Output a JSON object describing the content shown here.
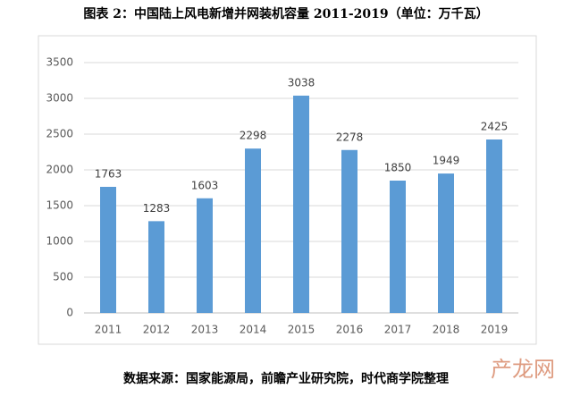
{
  "chart_data": {
    "type": "bar",
    "title": "图表 2：中国陆上风电新增并网装机容量 2011-2019（单位：万千瓦）",
    "categories": [
      "2011",
      "2012",
      "2013",
      "2014",
      "2015",
      "2016",
      "2017",
      "2018",
      "2019"
    ],
    "values": [
      1763,
      1283,
      1603,
      2298,
      3038,
      2278,
      1850,
      1949,
      2425
    ],
    "color": "#5b9bd5",
    "ylim": [
      0,
      3500
    ],
    "yticks": [
      0,
      500,
      1000,
      1500,
      2000,
      2500,
      3000,
      3500
    ],
    "grid": true,
    "source": "数据来源：国家能源局，前瞻产业研究院，时代商学院整理",
    "watermark": "产龙网"
  }
}
